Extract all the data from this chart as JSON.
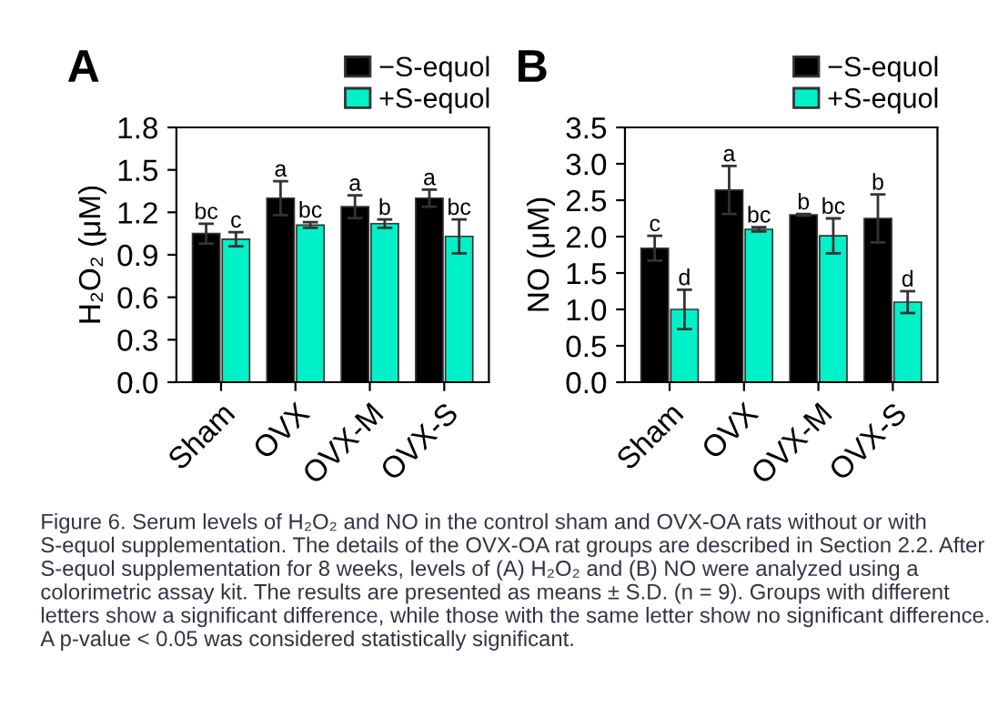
{
  "chart_data": [
    {
      "type": "bar",
      "title": "A",
      "ylabel": "H₂O₂ (μM)",
      "categories": [
        "Sham",
        "OVX",
        "OVX-M",
        "OVX-S"
      ],
      "series": [
        {
          "name": "−S-equol",
          "color": "#000000",
          "values": [
            1.05,
            1.3,
            1.24,
            1.3
          ],
          "errors": [
            0.07,
            0.12,
            0.08,
            0.06
          ],
          "value_labels": [
            "bc",
            "a",
            "a",
            "a"
          ]
        },
        {
          "name": "+S-equol",
          "color": "#00f0c8",
          "values": [
            1.01,
            1.11,
            1.12,
            1.03
          ],
          "errors": [
            0.05,
            0.02,
            0.03,
            0.12
          ],
          "value_labels": [
            "c",
            "bc",
            "b",
            "bc"
          ]
        }
      ],
      "ylim": [
        0,
        1.8
      ],
      "yticks": [
        {
          "value": 0,
          "label": "0.0"
        },
        0.3,
        0.6,
        0.9,
        1.2,
        1.5,
        1.8
      ],
      "legend": "top right",
      "grid": false,
      "annotations": [
        "Figure 6. Serum levels of H₂O₂ and NO in the control sham and OVX-OA rats without or with S-equol supplementation. The details of the OVX-OA rat groups are described in Section 2.2. After S-equol supplementation for 8 weeks, levels of (A) H₂O₂ and (B) NO were analyzed using a colorimetric assay kit. The results are presented as means ± S.D. (n = 9). Groups with different letters show a significant difference, while those with the same letter show no significant difference. A p-value < 0.05 was considered statistically significant."
      ]
    },
    {
      "type": "bar",
      "title": "B",
      "ylabel": "NO (μM)",
      "categories": [
        "Sham",
        "OVX",
        "OVX-M",
        "OVX-S"
      ],
      "series": [
        {
          "name": "−S-equol",
          "color": "#000000",
          "values": [
            1.84,
            2.64,
            2.3,
            2.25
          ],
          "errors": [
            0.17,
            0.33,
            0.01,
            0.33
          ],
          "value_labels": [
            "c",
            "a",
            "b",
            "b"
          ]
        },
        {
          "name": "+S-equol",
          "color": "#00f0c8",
          "values": [
            1.0,
            2.1,
            2.01,
            1.1
          ],
          "errors": [
            0.27,
            0.03,
            0.24,
            0.15
          ],
          "value_labels": [
            "d",
            "bc",
            "bc",
            "d"
          ]
        }
      ],
      "ylim": [
        0,
        3.5
      ],
      "yticks": [
        {
          "value": 0,
          "label": "0.0"
        },
        0.5,
        {
          "value": 1,
          "label": "1.0"
        },
        1.5,
        {
          "value": 2,
          "label": "2.0"
        },
        2.5,
        {
          "value": 3,
          "label": "3.0"
        },
        3.5
      ],
      "legend": "top right",
      "grid": false
    }
  ]
}
